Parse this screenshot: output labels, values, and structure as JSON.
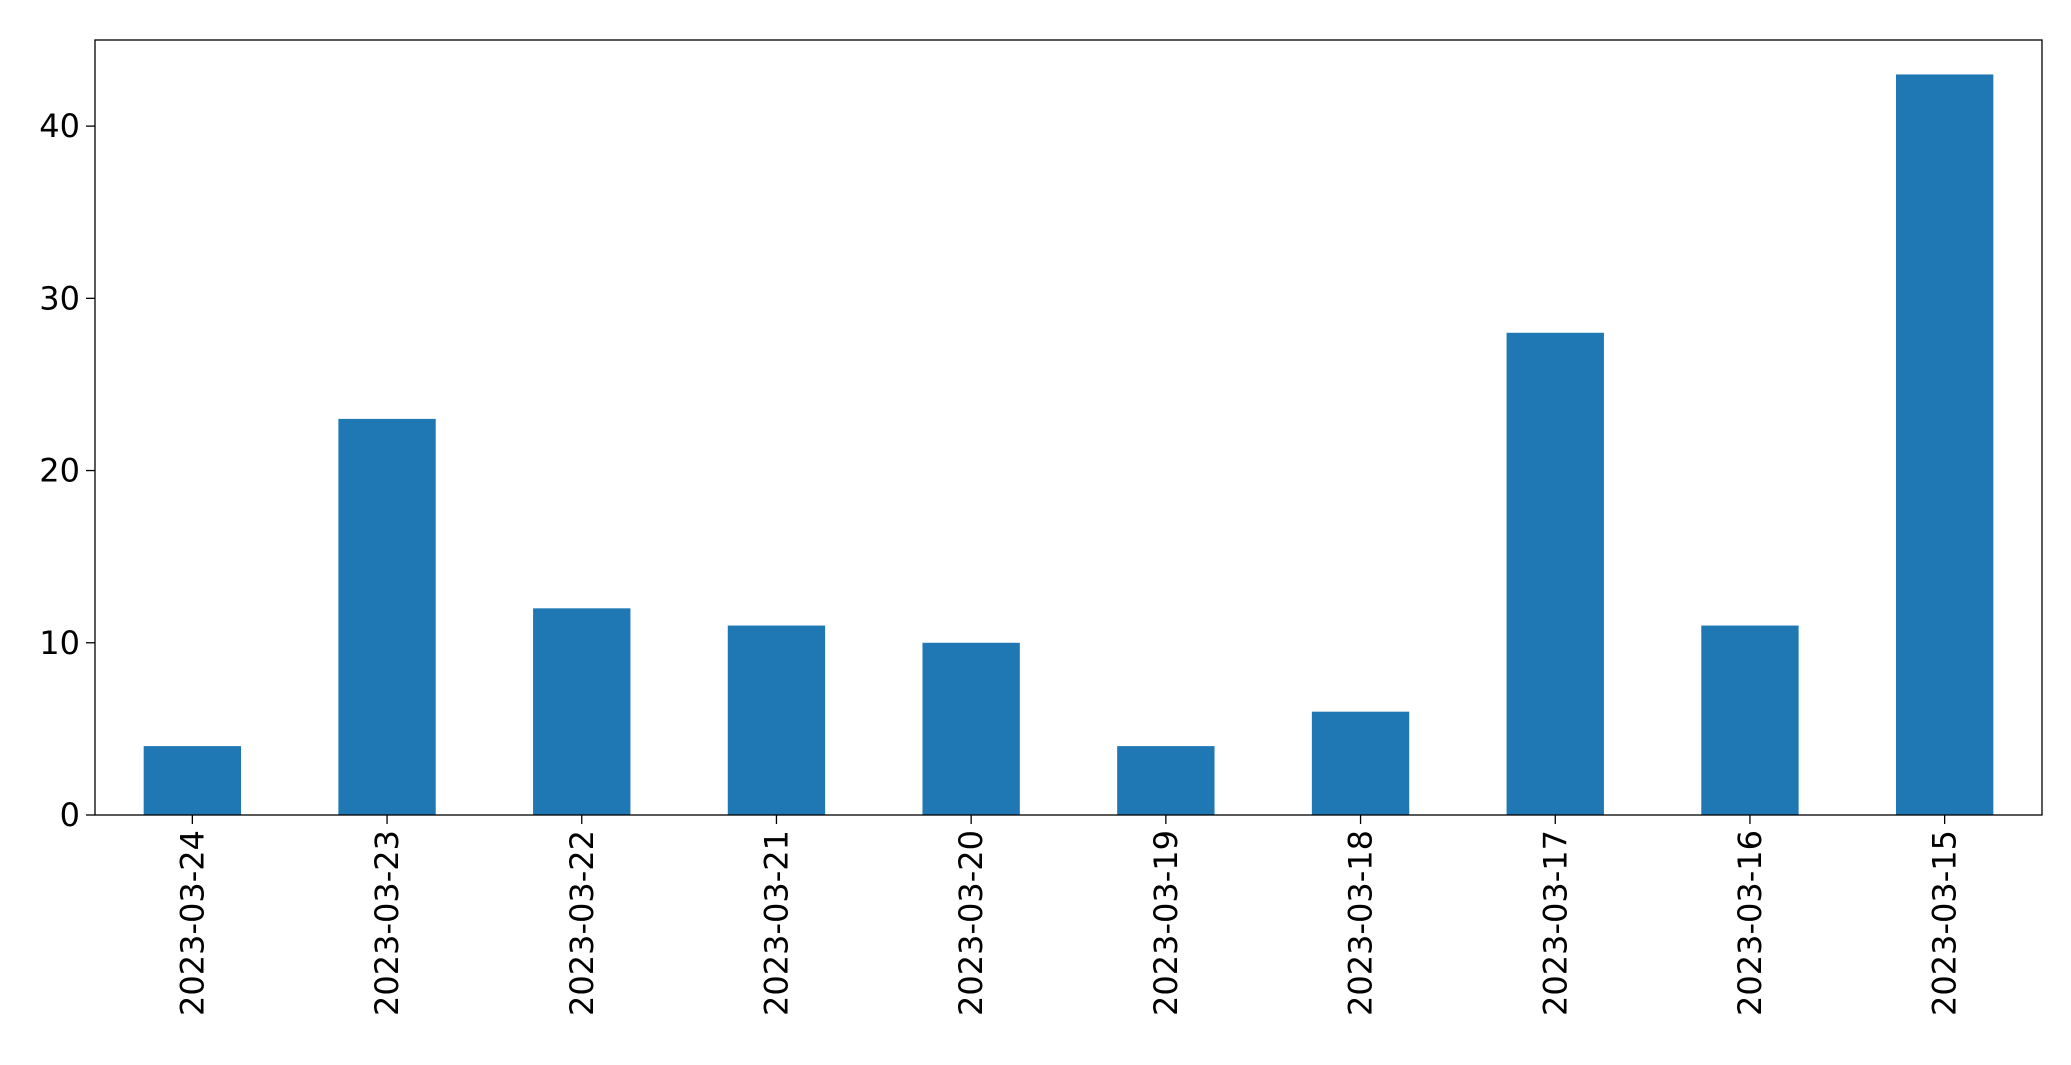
{
  "chart_data": {
    "type": "bar",
    "title": "",
    "xlabel": "",
    "ylabel": "",
    "categories": [
      "2023-03-24",
      "2023-03-23",
      "2023-03-22",
      "2023-03-21",
      "2023-03-20",
      "2023-03-19",
      "2023-03-18",
      "2023-03-17",
      "2023-03-16",
      "2023-03-15"
    ],
    "values": [
      4,
      23,
      12,
      11,
      10,
      4,
      6,
      28,
      11,
      43
    ],
    "ylim": [
      0,
      45
    ],
    "yticks": [
      0,
      10,
      20,
      30,
      40
    ],
    "bar_color": "#1f77b4",
    "grid": false,
    "legend": "none"
  }
}
